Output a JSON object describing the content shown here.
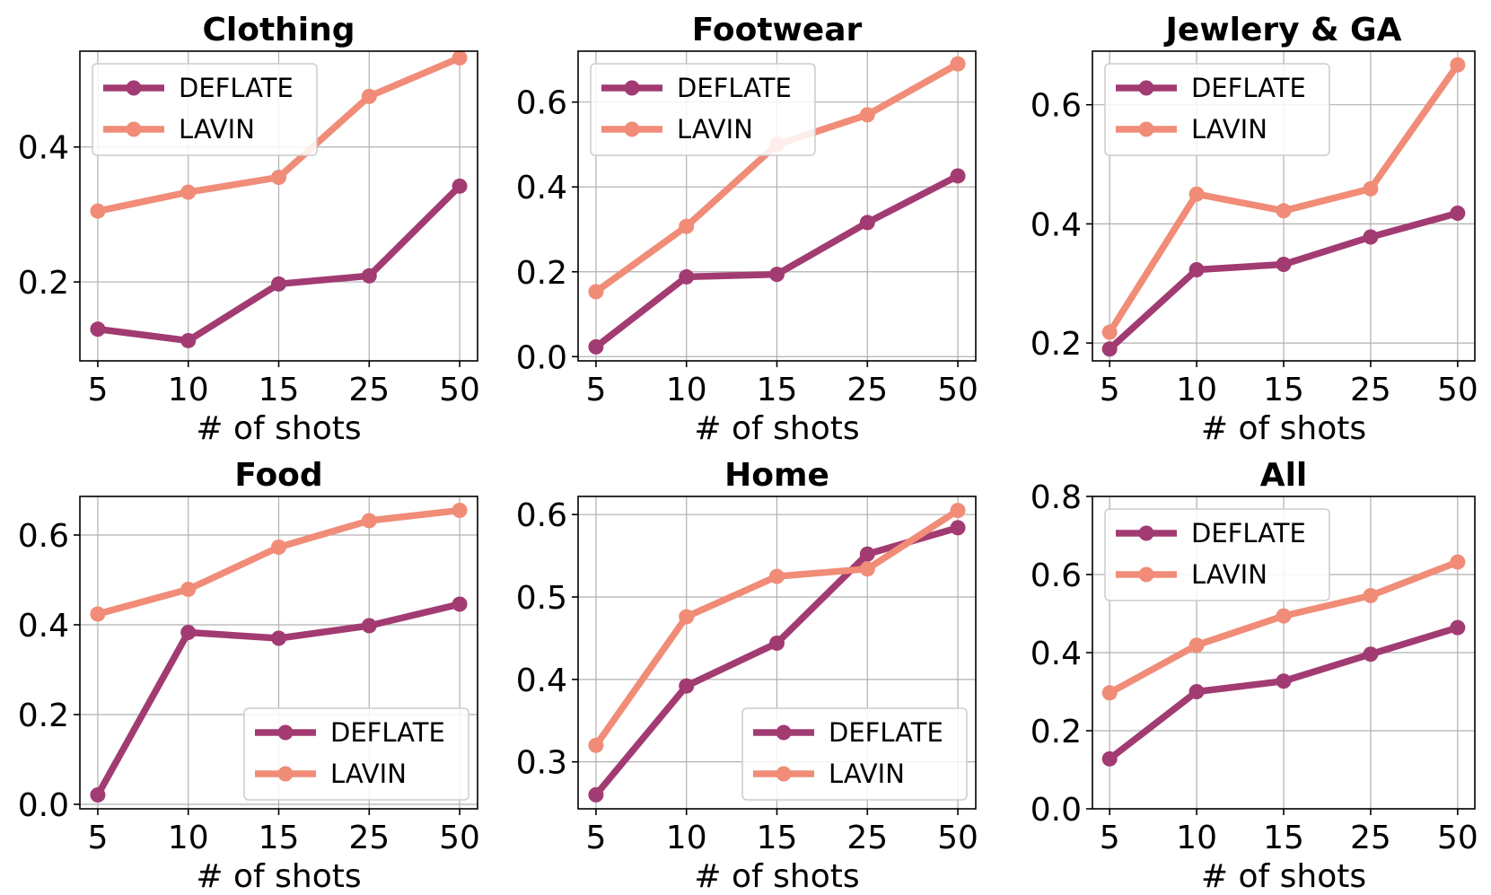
{
  "colors": {
    "DEFLATE": "#A23B72",
    "LAVIN": "#F08C77"
  },
  "chart_data": [
    {
      "type": "line",
      "title": "Clothing",
      "xlabel": "# of shots",
      "ylabel": "",
      "categories": [
        "5",
        "10",
        "15",
        "25",
        "50"
      ],
      "ylim": [
        0.083,
        0.542
      ],
      "yticks": [
        0.2,
        0.4
      ],
      "ytick_labels": [
        "0.2",
        "0.4"
      ],
      "legend": "top-left",
      "grid": true,
      "series": [
        {
          "name": "DEFLATE",
          "values": [
            0.13,
            0.113,
            0.197,
            0.209,
            0.342
          ]
        },
        {
          "name": "LAVIN",
          "values": [
            0.305,
            0.333,
            0.355,
            0.475,
            0.532
          ]
        }
      ]
    },
    {
      "type": "line",
      "title": "Footwear",
      "xlabel": "# of shots",
      "ylabel": "",
      "categories": [
        "5",
        "10",
        "15",
        "25",
        "50"
      ],
      "ylim": [
        -0.01,
        0.72
      ],
      "yticks": [
        0.0,
        0.2,
        0.4,
        0.6
      ],
      "ytick_labels": [
        "0.0",
        "0.2",
        "0.4",
        "0.6"
      ],
      "legend": "top-left",
      "grid": true,
      "series": [
        {
          "name": "DEFLATE",
          "values": [
            0.023,
            0.188,
            0.194,
            0.316,
            0.426
          ]
        },
        {
          "name": "LAVIN",
          "values": [
            0.153,
            0.307,
            0.5,
            0.57,
            0.69
          ]
        }
      ]
    },
    {
      "type": "line",
      "title": "Jewlery & GA",
      "xlabel": "# of shots",
      "ylabel": "",
      "categories": [
        "5",
        "10",
        "15",
        "25",
        "50"
      ],
      "ylim": [
        0.17,
        0.69
      ],
      "yticks": [
        0.2,
        0.4,
        0.6
      ],
      "ytick_labels": [
        "0.2",
        "0.4",
        "0.6"
      ],
      "legend": "top-left",
      "grid": true,
      "series": [
        {
          "name": "DEFLATE",
          "values": [
            0.19,
            0.323,
            0.332,
            0.378,
            0.418
          ]
        },
        {
          "name": "LAVIN",
          "values": [
            0.218,
            0.45,
            0.422,
            0.459,
            0.667
          ]
        }
      ]
    },
    {
      "type": "line",
      "title": "Food",
      "xlabel": "# of shots",
      "ylabel": "",
      "categories": [
        "5",
        "10",
        "15",
        "25",
        "50"
      ],
      "ylim": [
        -0.01,
        0.686
      ],
      "yticks": [
        0.0,
        0.2,
        0.4,
        0.6
      ],
      "ytick_labels": [
        "0.0",
        "0.2",
        "0.4",
        "0.6"
      ],
      "legend": "bottom-right",
      "grid": true,
      "series": [
        {
          "name": "DEFLATE",
          "values": [
            0.021,
            0.383,
            0.37,
            0.398,
            0.446
          ]
        },
        {
          "name": "LAVIN",
          "values": [
            0.424,
            0.479,
            0.573,
            0.632,
            0.655
          ]
        }
      ]
    },
    {
      "type": "line",
      "title": "Home",
      "xlabel": "# of shots",
      "ylabel": "",
      "categories": [
        "5",
        "10",
        "15",
        "25",
        "50"
      ],
      "ylim": [
        0.243,
        0.622
      ],
      "yticks": [
        0.3,
        0.4,
        0.5,
        0.6
      ],
      "ytick_labels": [
        "0.3",
        "0.4",
        "0.5",
        "0.6"
      ],
      "legend": "bottom-right",
      "grid": true,
      "series": [
        {
          "name": "DEFLATE",
          "values": [
            0.26,
            0.392,
            0.444,
            0.552,
            0.584
          ]
        },
        {
          "name": "LAVIN",
          "values": [
            0.32,
            0.476,
            0.525,
            0.534,
            0.605
          ]
        }
      ]
    },
    {
      "type": "line",
      "title": "All",
      "xlabel": "# of shots",
      "ylabel": "",
      "categories": [
        "5",
        "10",
        "15",
        "25",
        "50"
      ],
      "ylim": [
        0.0,
        0.8
      ],
      "yticks": [
        0.0,
        0.2,
        0.4,
        0.6,
        0.8
      ],
      "ytick_labels": [
        "0.0",
        "0.2",
        "0.4",
        "0.6",
        "0.8"
      ],
      "legend": "top-left",
      "grid": true,
      "series": [
        {
          "name": "DEFLATE",
          "values": [
            0.128,
            0.3,
            0.327,
            0.396,
            0.464
          ]
        },
        {
          "name": "LAVIN",
          "values": [
            0.297,
            0.419,
            0.494,
            0.546,
            0.632
          ]
        }
      ]
    }
  ]
}
